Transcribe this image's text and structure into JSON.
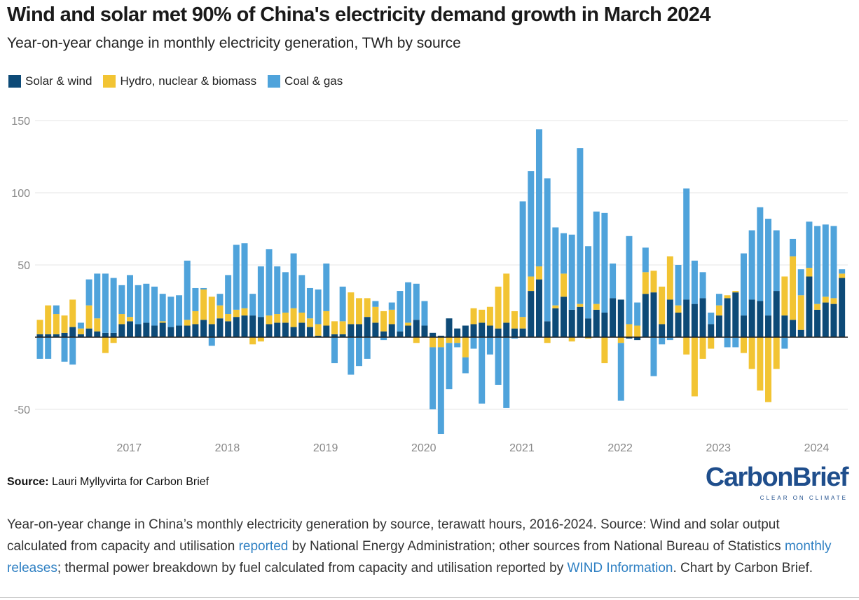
{
  "chart_data": {
    "type": "bar",
    "stacked": true,
    "title": "Wind and solar met 90% of China's electricity demand growth in March 2024",
    "subtitle": "Year-on-year change in monthly electricity generation, TWh by source",
    "xlabel": "",
    "ylabel": "",
    "ylim": [
      -70,
      150
    ],
    "yticks": [
      150,
      100,
      50,
      0,
      -50
    ],
    "ytick_labels": [
      "150",
      "100",
      "50",
      "",
      "-50"
    ],
    "grid": true,
    "legend_position": "top-left",
    "xticks": [
      {
        "label": "2017",
        "at": 10.9
      },
      {
        "label": "2018",
        "at": 22.9
      },
      {
        "label": "2019",
        "at": 34.9
      },
      {
        "label": "2020",
        "at": 46.9
      },
      {
        "label": "2021",
        "at": 58.9
      },
      {
        "label": "2022",
        "at": 70.9
      },
      {
        "label": "2023",
        "at": 82.9
      },
      {
        "label": "2024",
        "at": 94.9
      }
    ],
    "series": [
      {
        "name": "Solar & wind",
        "color": "#0d4a77",
        "values": [
          2,
          2,
          2,
          3,
          7,
          2,
          6,
          4,
          3,
          3,
          9,
          11,
          9,
          10,
          8,
          10,
          7,
          8,
          8,
          9,
          12,
          9,
          13,
          11,
          14,
          15,
          15,
          14,
          9,
          10,
          10,
          7,
          10,
          7,
          1,
          8,
          2,
          2,
          9,
          9,
          14,
          10,
          4,
          9,
          4,
          8,
          12,
          8,
          3,
          1,
          13,
          6,
          8,
          9,
          10,
          8,
          6,
          10,
          6,
          6,
          32,
          40,
          11,
          20,
          28,
          19,
          21,
          13,
          19,
          17,
          27,
          26,
          -1,
          -2,
          30,
          31,
          9,
          26,
          17,
          26,
          23,
          27,
          9,
          15,
          27,
          31,
          15,
          26,
          25,
          15,
          32,
          15,
          12,
          5,
          42,
          19,
          24,
          23,
          41
        ]
      },
      {
        "name": "Hydro, nuclear & biomass",
        "color": "#f2c433",
        "values": [
          10,
          20,
          14,
          12,
          19,
          4,
          16,
          9,
          -11,
          -4,
          7,
          3,
          0,
          0,
          0,
          1,
          0,
          0,
          4,
          9,
          21,
          19,
          9,
          5,
          5,
          5,
          -5,
          -3,
          6,
          6,
          7,
          13,
          7,
          6,
          8,
          10,
          9,
          9,
          22,
          18,
          13,
          11,
          14,
          10,
          0,
          2,
          -4,
          0,
          -7,
          -7,
          -4,
          -4,
          -14,
          11,
          9,
          13,
          29,
          34,
          12,
          8,
          10,
          9,
          -4,
          2,
          16,
          -3,
          2,
          -1,
          4,
          -18,
          0,
          -4,
          9,
          8,
          15,
          15,
          26,
          30,
          5,
          -12,
          -41,
          -15,
          -8,
          7,
          2,
          1,
          -11,
          -22,
          -37,
          -45,
          -22,
          27,
          44,
          24,
          6,
          4,
          4,
          4,
          3
        ]
      },
      {
        "name": "Coal & gas",
        "color": "#4fa3db",
        "values": [
          -15,
          -15,
          6,
          -17,
          -19,
          4,
          18,
          31,
          41,
          38,
          20,
          29,
          27,
          27,
          27,
          19,
          21,
          21,
          41,
          16,
          1,
          -6,
          8,
          27,
          45,
          45,
          15,
          35,
          46,
          33,
          28,
          38,
          26,
          21,
          24,
          33,
          -18,
          24,
          -26,
          -20,
          -15,
          4,
          -2,
          5,
          28,
          28,
          25,
          17,
          -43,
          -60,
          -32,
          -3,
          -11,
          -8,
          -46,
          -12,
          -33,
          -49,
          -1,
          80,
          73,
          95,
          99,
          54,
          28,
          52,
          108,
          50,
          64,
          69,
          24,
          -40,
          61,
          16,
          17,
          -27,
          -5,
          -2,
          28,
          77,
          30,
          18,
          8,
          8,
          -7,
          -7,
          43,
          48,
          65,
          67,
          42,
          -8,
          12,
          18,
          32,
          54,
          50,
          50,
          3
        ]
      }
    ]
  },
  "legend": {
    "items": [
      "Solar & wind",
      "Hydro, nuclear & biomass",
      "Coal & gas"
    ]
  },
  "source": {
    "label": "Source:",
    "text": " Lauri Myllyvirta for Carbon Brief"
  },
  "logo": {
    "name": "CarbonBrief",
    "tagline": "CLEAR ON CLIMATE"
  },
  "caption": {
    "t1": "Year-on-year change in China’s monthly electricity generation by source, terawatt hours, 2016-2024. Source: Wind and solar output calculated from capacity and utilisation ",
    "l1": "reported",
    "t2": " by National Energy Administration; other sources from National Bureau of Statistics ",
    "l2": "monthly releases",
    "t3": "; thermal power breakdown by fuel calculated from capacity and utilisation reported by ",
    "l3": "WIND Information",
    "t4": ". Chart by Carbon Brief."
  }
}
